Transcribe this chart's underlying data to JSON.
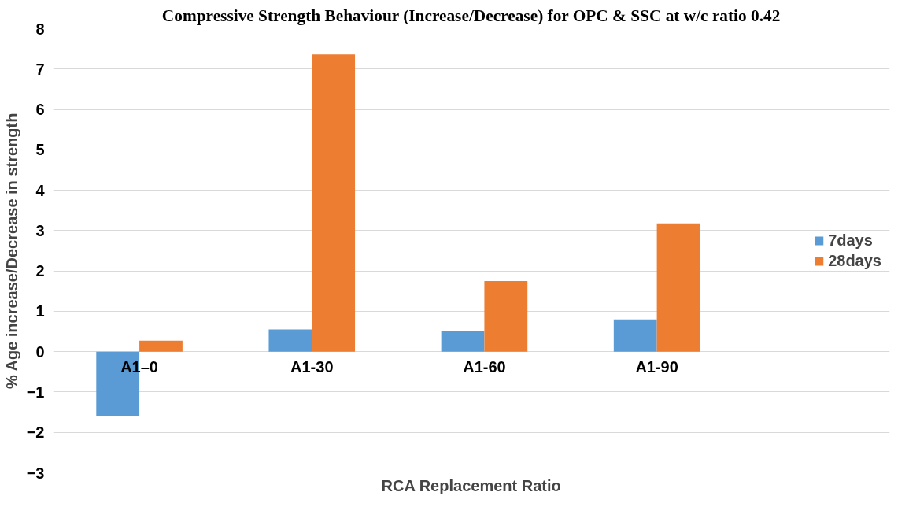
{
  "chart_data": {
    "type": "bar",
    "title": "Compressive Strength Behaviour (Increase/Decrease) for OPC & SSC at w/c ratio 0.42",
    "xlabel": "RCA Replacement Ratio",
    "ylabel": "% Age increase/Decrease in strength",
    "categories": [
      "A1–0",
      "A1-30",
      "A1-60",
      "A1-90"
    ],
    "series": [
      {
        "name": "7days",
        "color": "#5b9bd5",
        "values": [
          -1.6,
          0.55,
          0.52,
          0.8
        ]
      },
      {
        "name": "28days",
        "color": "#ed7d31",
        "values": [
          0.27,
          7.36,
          1.75,
          3.18
        ]
      }
    ],
    "ylim": [
      -3,
      8
    ],
    "yticks": [
      -3,
      -2,
      -1,
      0,
      1,
      2,
      3,
      4,
      5,
      6,
      7,
      8
    ],
    "grid": "y",
    "legend": "right"
  }
}
